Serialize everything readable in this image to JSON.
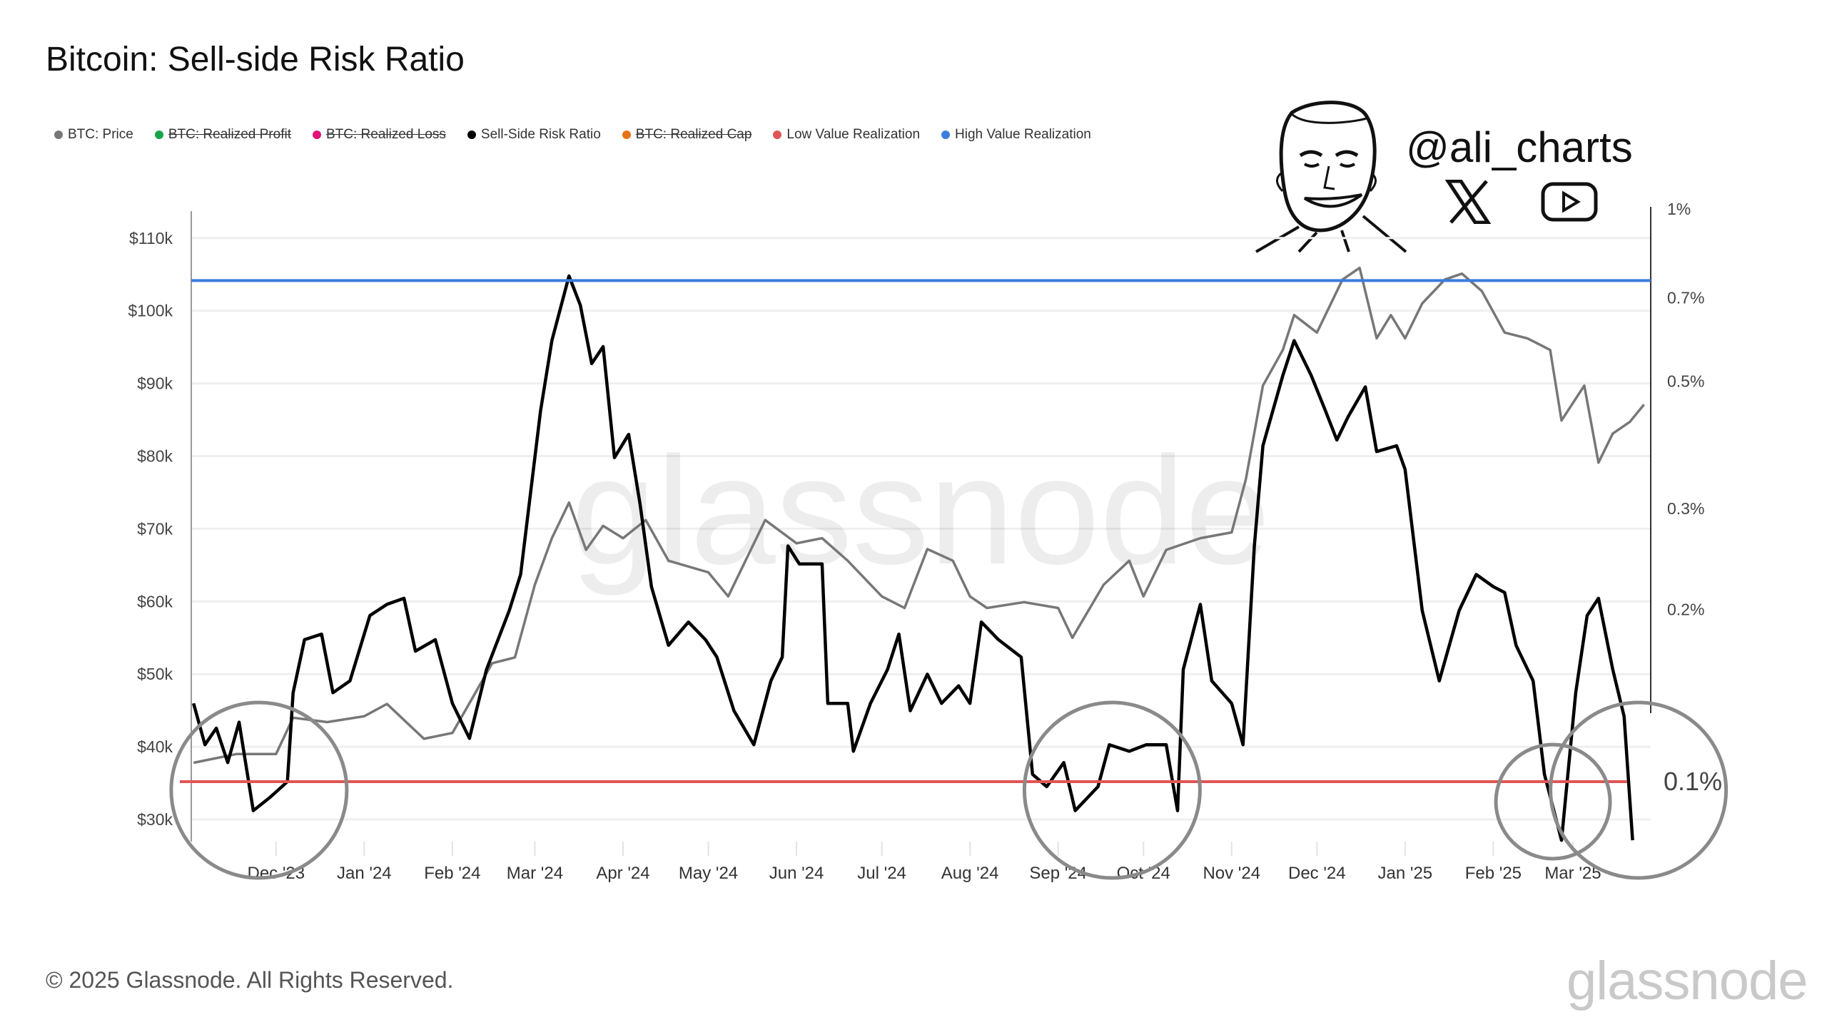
{
  "title": "Bitcoin: Sell-side Risk Ratio",
  "legend": [
    {
      "label": "BTC: Price",
      "color": "#777777",
      "hidden": false
    },
    {
      "label": "BTC: Realized Profit",
      "color": "#1aa34a",
      "hidden": true
    },
    {
      "label": "BTC: Realized Loss",
      "color": "#e0147a",
      "hidden": true
    },
    {
      "label": "Sell-Side Risk Ratio",
      "color": "#000000",
      "hidden": false
    },
    {
      "label": "BTC: Realized Cap",
      "color": "#e67412",
      "hidden": true
    },
    {
      "label": "Low Value Realization",
      "color": "#e05555",
      "hidden": false
    },
    {
      "label": "High Value Realization",
      "color": "#3b7ddd",
      "hidden": false
    }
  ],
  "branding": {
    "handle": "@ali_charts",
    "icons": [
      "x-logo-icon",
      "youtube-icon"
    ]
  },
  "watermark": "glassnode",
  "footer": {
    "copyright": "© 2025 Glassnode. All Rights Reserved.",
    "logo": "glassnode"
  },
  "chart_data": {
    "type": "line",
    "title": "Bitcoin: Sell-side Risk Ratio",
    "x_ticks": [
      "Dec '23",
      "Jan '24",
      "Feb '24",
      "Mar '24",
      "Apr '24",
      "May '24",
      "Jun '24",
      "Jul '24",
      "Aug '24",
      "Sep '24",
      "Oct '24",
      "Nov '24",
      "Dec '24",
      "Jan '25",
      "Feb '25",
      "Mar '25"
    ],
    "x_tick_dates": [
      "2023-12-01",
      "2024-01-01",
      "2024-02-01",
      "2024-03-01",
      "2024-04-01",
      "2024-05-01",
      "2024-06-01",
      "2024-07-01",
      "2024-08-01",
      "2024-09-01",
      "2024-10-01",
      "2024-11-01",
      "2024-12-01",
      "2025-01-01",
      "2025-02-01",
      "2025-03-01"
    ],
    "y_left": {
      "ticks": [
        "$30k",
        "$40k",
        "$50k",
        "$60k",
        "$70k",
        "$80k",
        "$90k",
        "$100k",
        "$110k"
      ],
      "tick_values": [
        30,
        40,
        50,
        60,
        70,
        80,
        90,
        100,
        110
      ],
      "unit": "k USD",
      "range": [
        27,
        115
      ]
    },
    "y_right": {
      "ticks": [
        "1%",
        "0.7%",
        "0.5%",
        "0.3%",
        "0.2%",
        "0.1%"
      ],
      "tick_values": [
        1,
        0.7,
        0.5,
        0.3,
        0.2,
        0.1
      ],
      "scale": "log",
      "range": [
        0.075,
        1
      ]
    },
    "grid": true,
    "legend_position": "top-left",
    "series": [
      {
        "name": "BTC: Price",
        "axis": "left",
        "color": "#777777",
        "points": [
          [
            "2023-11-02",
            37.8
          ],
          [
            "2023-11-17",
            39
          ],
          [
            "2023-12-01",
            39
          ],
          [
            "2023-12-07",
            44
          ],
          [
            "2023-12-19",
            43.4
          ],
          [
            "2024-01-01",
            44.2
          ],
          [
            "2024-01-09",
            45.9
          ],
          [
            "2024-01-22",
            41.1
          ],
          [
            "2024-02-01",
            41.9
          ],
          [
            "2024-02-07",
            46
          ],
          [
            "2024-02-15",
            51.5
          ],
          [
            "2024-02-23",
            52.3
          ],
          [
            "2024-03-01",
            62.3
          ],
          [
            "2024-03-07",
            68.7
          ],
          [
            "2024-03-13",
            73.6
          ],
          [
            "2024-03-19",
            67.1
          ],
          [
            "2024-03-25",
            70.4
          ],
          [
            "2024-04-01",
            68.7
          ],
          [
            "2024-04-09",
            71.2
          ],
          [
            "2024-04-17",
            65.6
          ],
          [
            "2024-05-01",
            64
          ],
          [
            "2024-05-08",
            60.7
          ],
          [
            "2024-05-21",
            71.2
          ],
          [
            "2024-06-01",
            68
          ],
          [
            "2024-06-10",
            68.7
          ],
          [
            "2024-06-19",
            65.6
          ],
          [
            "2024-07-01",
            60.7
          ],
          [
            "2024-07-09",
            59.1
          ],
          [
            "2024-07-17",
            67.2
          ],
          [
            "2024-07-26",
            65.6
          ],
          [
            "2024-08-01",
            60.7
          ],
          [
            "2024-08-07",
            59.1
          ],
          [
            "2024-08-20",
            59.9
          ],
          [
            "2024-09-01",
            59.1
          ],
          [
            "2024-09-06",
            55
          ],
          [
            "2024-09-17",
            62.3
          ],
          [
            "2024-09-26",
            65.6
          ],
          [
            "2024-10-01",
            60.7
          ],
          [
            "2024-10-09",
            67.1
          ],
          [
            "2024-10-21",
            68.7
          ],
          [
            "2024-11-01",
            69.5
          ],
          [
            "2024-11-06",
            76.8
          ],
          [
            "2024-11-12",
            89.7
          ],
          [
            "2024-11-19",
            94.6
          ],
          [
            "2024-11-23",
            99.4
          ],
          [
            "2024-12-01",
            97
          ],
          [
            "2024-12-10",
            104.3
          ],
          [
            "2024-12-16",
            105.9
          ],
          [
            "2024-12-22",
            96.2
          ],
          [
            "2024-12-27",
            99.4
          ],
          [
            "2025-01-01",
            96.2
          ],
          [
            "2025-01-07",
            101
          ],
          [
            "2025-01-15",
            104.3
          ],
          [
            "2025-01-21",
            105.1
          ],
          [
            "2025-01-28",
            102.7
          ],
          [
            "2025-02-05",
            97
          ],
          [
            "2025-02-13",
            96.2
          ],
          [
            "2025-02-21",
            94.6
          ],
          [
            "2025-02-25",
            84.9
          ],
          [
            "2025-03-05",
            89.7
          ],
          [
            "2025-03-10",
            79.1
          ],
          [
            "2025-03-15",
            83.1
          ],
          [
            "2025-03-21",
            84.7
          ],
          [
            "2025-03-26",
            87.1
          ]
        ]
      },
      {
        "name": "Sell-Side Risk Ratio",
        "axis": "right",
        "color": "#000000",
        "points": [
          [
            "2023-11-02",
            0.137
          ],
          [
            "2023-11-06",
            0.116
          ],
          [
            "2023-11-10",
            0.124
          ],
          [
            "2023-11-14",
            0.108
          ],
          [
            "2023-11-18",
            0.127
          ],
          [
            "2023-11-23",
            0.089
          ],
          [
            "2023-11-29",
            0.094
          ],
          [
            "2023-12-05",
            0.1
          ],
          [
            "2023-12-07",
            0.143
          ],
          [
            "2023-12-11",
            0.177
          ],
          [
            "2023-12-17",
            0.181
          ],
          [
            "2023-12-21",
            0.143
          ],
          [
            "2023-12-27",
            0.15
          ],
          [
            "2024-01-03",
            0.195
          ],
          [
            "2024-01-09",
            0.204
          ],
          [
            "2024-01-15",
            0.209
          ],
          [
            "2024-01-19",
            0.169
          ],
          [
            "2024-01-26",
            0.177
          ],
          [
            "2024-02-01",
            0.137
          ],
          [
            "2024-02-07",
            0.119
          ],
          [
            "2024-02-13",
            0.157
          ],
          [
            "2024-02-21",
            0.199
          ],
          [
            "2024-02-25",
            0.23
          ],
          [
            "2024-03-03",
            0.444
          ],
          [
            "2024-03-07",
            0.589
          ],
          [
            "2024-03-13",
            0.764
          ],
          [
            "2024-03-17",
            0.679
          ],
          [
            "2024-03-21",
            0.537
          ],
          [
            "2024-03-25",
            0.575
          ],
          [
            "2024-03-29",
            0.368
          ],
          [
            "2024-04-03",
            0.404
          ],
          [
            "2024-04-07",
            0.305
          ],
          [
            "2024-04-11",
            0.219
          ],
          [
            "2024-04-17",
            0.173
          ],
          [
            "2024-04-24",
            0.19
          ],
          [
            "2024-04-30",
            0.177
          ],
          [
            "2024-05-04",
            0.165
          ],
          [
            "2024-05-10",
            0.133
          ],
          [
            "2024-05-17",
            0.116
          ],
          [
            "2024-05-23",
            0.15
          ],
          [
            "2024-05-27",
            0.165
          ],
          [
            "2024-05-29",
            0.258
          ],
          [
            "2024-06-02",
            0.24
          ],
          [
            "2024-06-10",
            0.24
          ],
          [
            "2024-06-12",
            0.137
          ],
          [
            "2024-06-19",
            0.137
          ],
          [
            "2024-06-21",
            0.113
          ],
          [
            "2024-06-27",
            0.137
          ],
          [
            "2024-07-03",
            0.157
          ],
          [
            "2024-07-07",
            0.181
          ],
          [
            "2024-07-11",
            0.133
          ],
          [
            "2024-07-17",
            0.154
          ],
          [
            "2024-07-22",
            0.137
          ],
          [
            "2024-07-28",
            0.147
          ],
          [
            "2024-08-01",
            0.137
          ],
          [
            "2024-08-05",
            0.19
          ],
          [
            "2024-08-11",
            0.177
          ],
          [
            "2024-08-19",
            0.165
          ],
          [
            "2024-08-23",
            0.103
          ],
          [
            "2024-08-28",
            0.098
          ],
          [
            "2024-09-03",
            0.108
          ],
          [
            "2024-09-07",
            0.089
          ],
          [
            "2024-09-15",
            0.098
          ],
          [
            "2024-09-19",
            0.116
          ],
          [
            "2024-09-26",
            0.113
          ],
          [
            "2024-10-02",
            0.116
          ],
          [
            "2024-10-09",
            0.116
          ],
          [
            "2024-10-13",
            0.089
          ],
          [
            "2024-10-15",
            0.157
          ],
          [
            "2024-10-21",
            0.204
          ],
          [
            "2024-10-25",
            0.15
          ],
          [
            "2024-11-01",
            0.137
          ],
          [
            "2024-11-05",
            0.116
          ],
          [
            "2024-11-09",
            0.258
          ],
          [
            "2024-11-12",
            0.386
          ],
          [
            "2024-11-19",
            0.512
          ],
          [
            "2024-11-23",
            0.589
          ],
          [
            "2024-11-29",
            0.512
          ],
          [
            "2024-12-04",
            0.444
          ],
          [
            "2024-12-08",
            0.395
          ],
          [
            "2024-12-12",
            0.434
          ],
          [
            "2024-12-18",
            0.489
          ],
          [
            "2024-12-22",
            0.377
          ],
          [
            "2024-12-29",
            0.386
          ],
          [
            "2025-01-01",
            0.351
          ],
          [
            "2025-01-07",
            0.199
          ],
          [
            "2025-01-13",
            0.15
          ],
          [
            "2025-01-20",
            0.199
          ],
          [
            "2025-01-26",
            0.23
          ],
          [
            "2025-02-01",
            0.219
          ],
          [
            "2025-02-05",
            0.214
          ],
          [
            "2025-02-09",
            0.173
          ],
          [
            "2025-02-15",
            0.15
          ],
          [
            "2025-02-19",
            0.103
          ],
          [
            "2025-02-25",
            0.079
          ],
          [
            "2025-03-02",
            0.143
          ],
          [
            "2025-03-06",
            0.195
          ],
          [
            "2025-03-10",
            0.209
          ],
          [
            "2025-03-15",
            0.157
          ],
          [
            "2025-03-19",
            0.13
          ],
          [
            "2025-03-21",
            0.093
          ],
          [
            "2025-03-22",
            0.079
          ]
        ]
      },
      {
        "name": "High Value Realization",
        "axis": "right",
        "color": "#3b7ddd",
        "value": 0.75
      },
      {
        "name": "Low Value Realization",
        "axis": "right",
        "color": "#e05555",
        "value": 0.1
      }
    ],
    "annotations": {
      "highlight_circles": [
        "2023-11-25",
        "2024-09-20",
        "2025-02-22",
        "2025-03-24"
      ],
      "magnified_label": "0.1%"
    }
  }
}
